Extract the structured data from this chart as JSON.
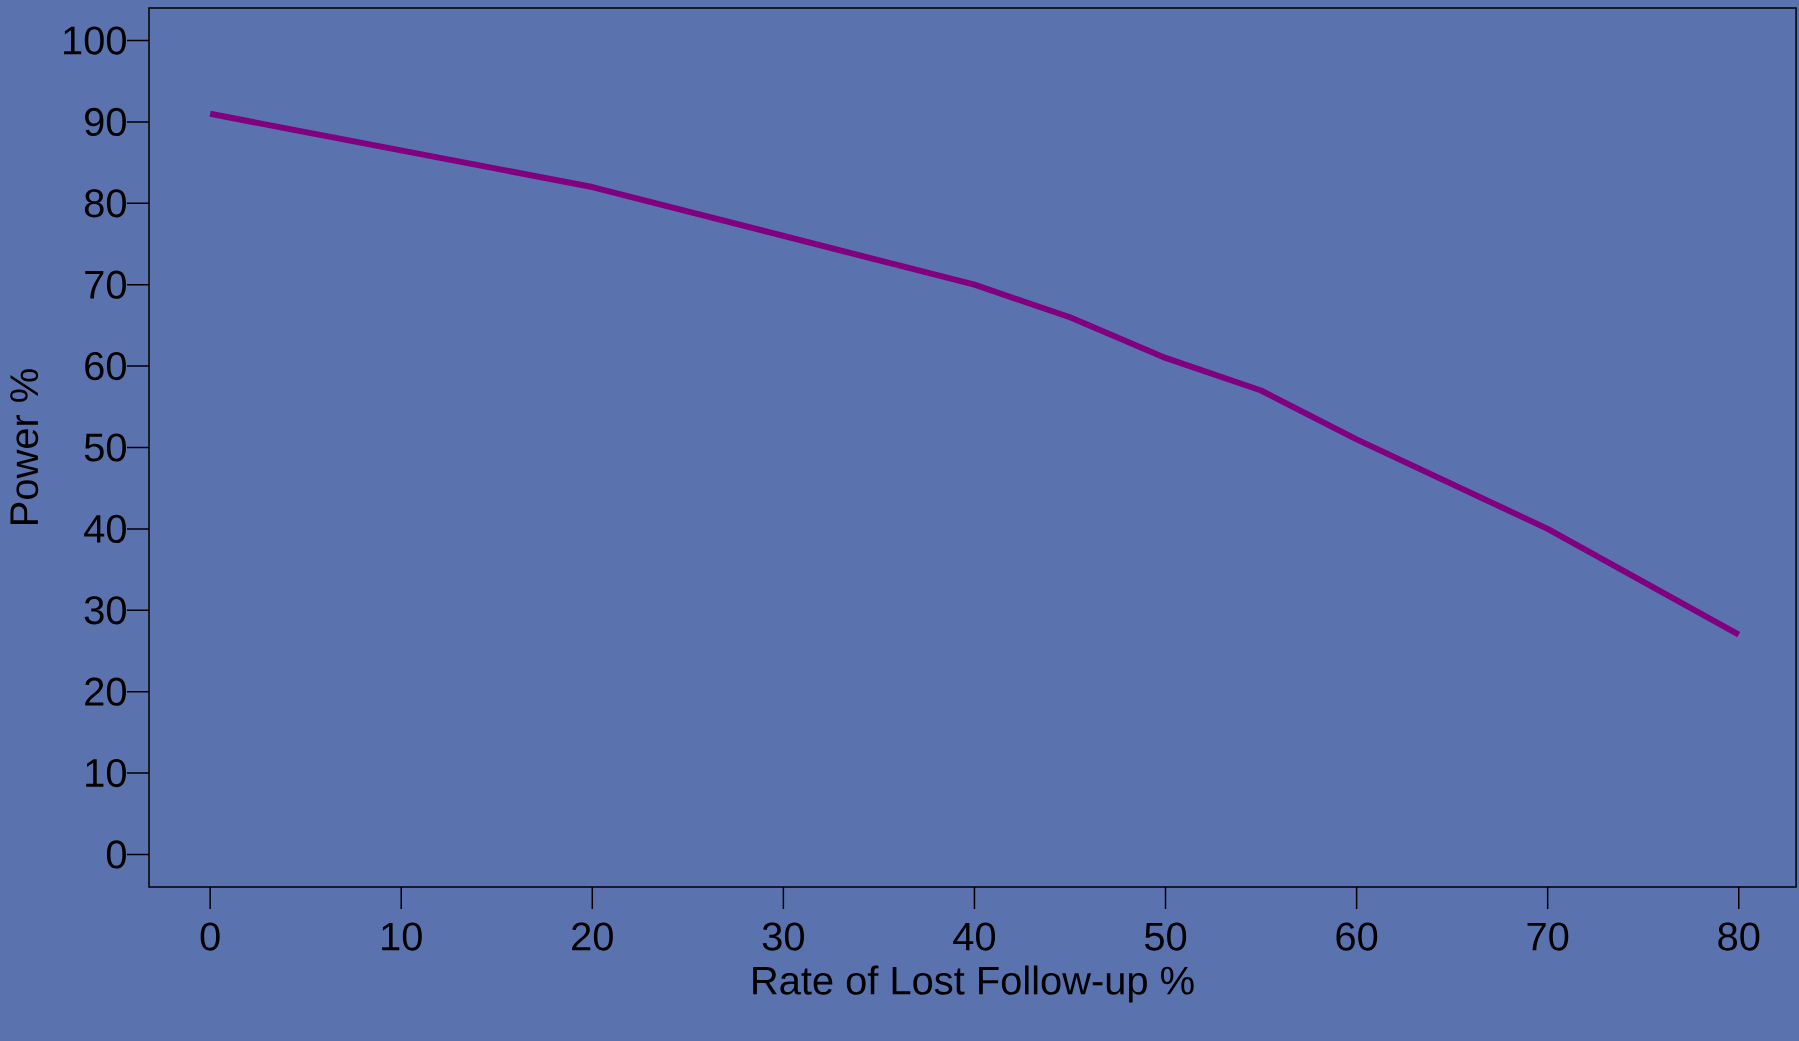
{
  "chart_data": {
    "type": "line",
    "xlabel": "Rate of Lost Follow-up %",
    "ylabel": "Power %",
    "x": [
      0,
      20,
      40,
      45,
      50,
      55,
      60,
      70,
      80
    ],
    "series": [
      {
        "color": "#800080",
        "values": [
          91,
          82,
          70,
          66,
          61,
          57,
          51,
          40,
          27
        ]
      }
    ],
    "xlim": [
      -3.2,
      83
    ],
    "ylim": [
      -4,
      104
    ],
    "xticks": [
      0,
      10,
      20,
      30,
      40,
      50,
      60,
      70,
      80
    ],
    "yticks": [
      0,
      10,
      20,
      30,
      40,
      50,
      60,
      70,
      80,
      90,
      100
    ],
    "grid": false,
    "marker": "none",
    "line_style": "solid"
  }
}
